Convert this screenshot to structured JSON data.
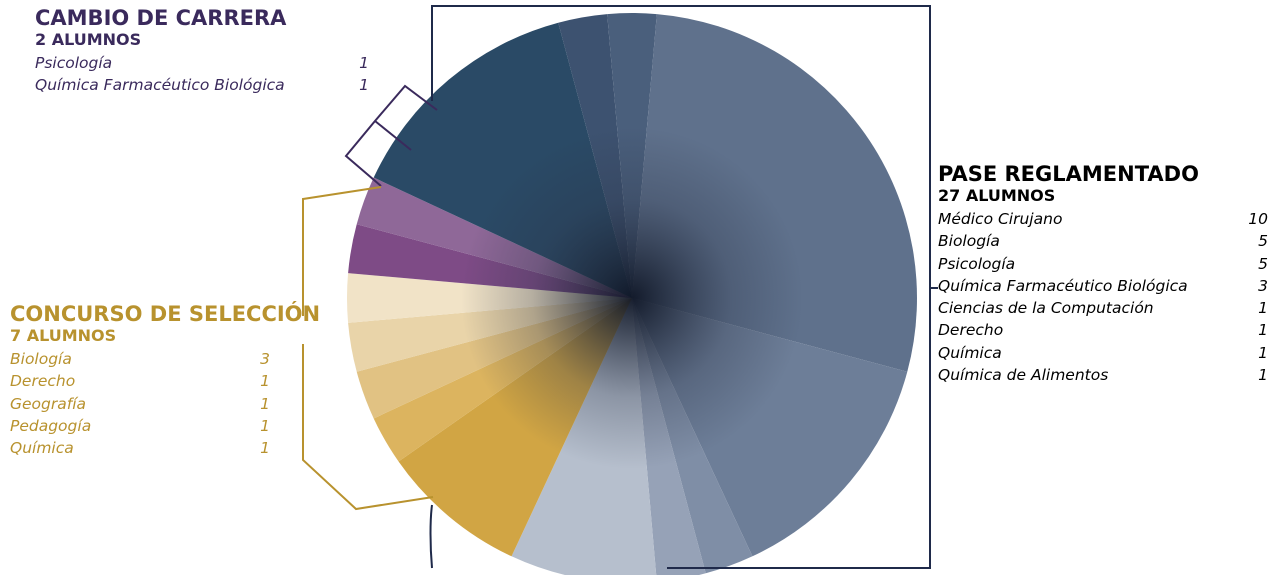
{
  "colors": {
    "cambio": "#3a2a5c",
    "concurso": "#b8922e",
    "pase_line": "#1f2a4a"
  },
  "chart_data": {
    "type": "pie",
    "title": "",
    "groups": [
      {
        "key": "cambio",
        "title": "CAMBIO DE CARRERA",
        "subtitle": "2 ALUMNOS",
        "total": 2,
        "items": [
          {
            "label": "Psicología",
            "value": 1
          },
          {
            "label": "Química Farmacéutico Biológica",
            "value": 1
          }
        ]
      },
      {
        "key": "pase",
        "title": "PASE REGLAMENTADO",
        "subtitle": "27 ALUMNOS",
        "total": 27,
        "items": [
          {
            "label": "Médico Cirujano",
            "value": 10
          },
          {
            "label": "Biología",
            "value": 5
          },
          {
            "label": "Psicología",
            "value": 5
          },
          {
            "label": "Química Farmacéutico Biológica",
            "value": 3
          },
          {
            "label": "Ciencias de la Computación",
            "value": 1
          },
          {
            "label": "Derecho",
            "value": 1
          },
          {
            "label": "Química",
            "value": 1
          },
          {
            "label": "Química de Alimentos",
            "value": 1
          }
        ]
      },
      {
        "key": "concurso",
        "title": "CONCURSO DE SELECCIÓN",
        "subtitle": "7 ALUMNOS",
        "total": 7,
        "items": [
          {
            "label": "Biología",
            "value": 3
          },
          {
            "label": "Derecho",
            "value": 1
          },
          {
            "label": "Geografía",
            "value": 1
          },
          {
            "label": "Pedagogía",
            "value": 1
          },
          {
            "label": "Química",
            "value": 1
          }
        ]
      }
    ],
    "slices": [
      {
        "group": "pase",
        "label": "Química de Alimentos",
        "value": 1,
        "color": "#3d5270"
      },
      {
        "group": "pase",
        "label": "Química",
        "value": 1,
        "color": "#4a5f7c"
      },
      {
        "group": "pase",
        "label": "Médico Cirujano",
        "value": 10,
        "color": "#5f718c"
      },
      {
        "group": "pase",
        "label": "Biología",
        "value": 5,
        "color": "#6d7e98"
      },
      {
        "group": "pase",
        "label": "Derecho",
        "value": 1,
        "color": "#7f8ea6"
      },
      {
        "group": "pase",
        "label": "Ciencias de la Computación",
        "value": 1,
        "color": "#96a2b7"
      },
      {
        "group": "pase",
        "label": "Química Farmacéutico Biológica",
        "value": 3,
        "color": "#b6bfcd"
      },
      {
        "group": "concurso",
        "label": "Biología",
        "value": 3,
        "color": "#d1a544"
      },
      {
        "group": "concurso",
        "label": "Química",
        "value": 1,
        "color": "#dcb45f"
      },
      {
        "group": "concurso",
        "label": "Pedagogía",
        "value": 1,
        "color": "#e1c283"
      },
      {
        "group": "concurso",
        "label": "Geografía",
        "value": 1,
        "color": "#e9d4a9"
      },
      {
        "group": "concurso",
        "label": "Derecho",
        "value": 1,
        "color": "#f1e3c7"
      },
      {
        "group": "cambio",
        "label": "Química Farmacéutico Biológica",
        "value": 1,
        "color": "#7e4b86"
      },
      {
        "group": "cambio",
        "label": "Psicología",
        "value": 1,
        "color": "#8f6898"
      },
      {
        "group": "pase",
        "label": "Psicología",
        "value": 5,
        "color": "#2a4a66"
      }
    ]
  }
}
